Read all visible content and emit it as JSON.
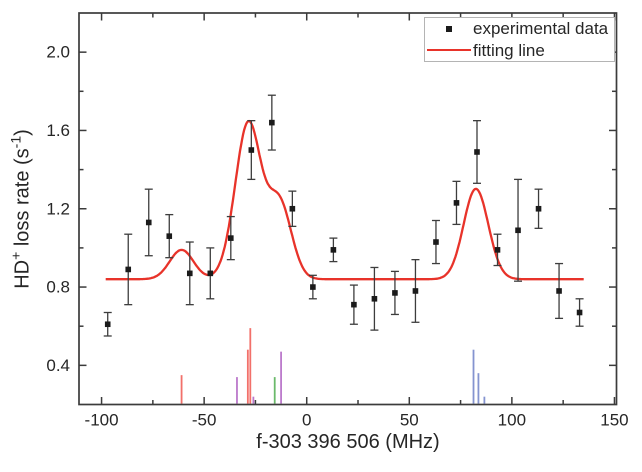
{
  "figure": {
    "legend": {
      "items": [
        {
          "label": "experimental data",
          "marker": "square",
          "color": "#1b1b1b"
        },
        {
          "label": "fitting line",
          "marker": "line",
          "color": "#e8332a"
        }
      ]
    }
  },
  "chart_data": {
    "type": "scatter",
    "title": "",
    "xlabel": "f-303 396 506 (MHz)",
    "ylabel": "HD+ loss rate (s-1)",
    "ylabel_parts": {
      "pre": "HD",
      "sup1": "+",
      "mid": " loss rate (s",
      "sup2": "-1",
      "post": ")"
    },
    "xlim": [
      -111,
      151
    ],
    "ylim": [
      0.2,
      2.2
    ],
    "grid": false,
    "legend_position": "top-right",
    "x_ticks": {
      "major": [
        -100,
        -50,
        0,
        50,
        100,
        150
      ],
      "labels": [
        "-100",
        "-50",
        "0",
        "50",
        "100",
        "150"
      ],
      "minor": [
        -75,
        -25,
        25,
        75,
        125
      ]
    },
    "y_ticks": {
      "major": [
        0.4,
        0.8,
        1.2,
        1.6,
        2.0
      ],
      "labels": [
        "0.4",
        "0.8",
        "1.2",
        "1.6",
        "2.0"
      ],
      "minor": [
        0.6,
        1.0,
        1.4,
        1.8
      ]
    },
    "colors": {
      "frame": "#3b3b3b",
      "text": "#262626",
      "marker": "#1b1b1b",
      "error_bar": "#3d3d3d",
      "fit": "#e8332a"
    },
    "experimental_points": [
      [
        -97,
        0.61,
        0.06
      ],
      [
        -87,
        0.89,
        0.18
      ],
      [
        -77,
        1.13,
        0.17
      ],
      [
        -67,
        1.06,
        0.11
      ],
      [
        -57,
        0.87,
        0.16
      ],
      [
        -47,
        0.87,
        0.13
      ],
      [
        -37,
        1.05,
        0.11
      ],
      [
        -27,
        1.5,
        0.15
      ],
      [
        -17,
        1.64,
        0.14
      ],
      [
        -7,
        1.2,
        0.09
      ],
      [
        3,
        0.8,
        0.06
      ],
      [
        13,
        0.99,
        0.06
      ],
      [
        23,
        0.71,
        0.1
      ],
      [
        33,
        0.74,
        0.16
      ],
      [
        43,
        0.77,
        0.11
      ],
      [
        53,
        0.78,
        0.16
      ],
      [
        63,
        1.03,
        0.11
      ],
      [
        73,
        1.23,
        0.11
      ],
      [
        83,
        1.49,
        0.16
      ],
      [
        93,
        0.99,
        0.08
      ],
      [
        103,
        1.09,
        0.26
      ],
      [
        113,
        1.2,
        0.1
      ],
      [
        123,
        0.78,
        0.14
      ],
      [
        133,
        0.67,
        0.07
      ]
    ],
    "fit": {
      "name": "fitting line",
      "model": "baseline plus gaussian components centered on sticks, amplitude = stick height",
      "baseline": 0.84,
      "sigma": 5.8,
      "domain": [
        -98,
        135
      ],
      "peak_maxima": [
        [
          -61,
          0.99
        ],
        [
          -27,
          1.69
        ],
        [
          84,
          1.3
        ]
      ]
    },
    "stick_colors": {
      "red": "#f2706a",
      "purple": "#bb79cb",
      "green": "#6aba6a",
      "blue": "#8594d0"
    },
    "sticks": [
      {
        "x": -61.0,
        "top": 0.35,
        "color": "red"
      },
      {
        "x": -34.0,
        "top": 0.34,
        "color": "purple"
      },
      {
        "x": -28.7,
        "top": 0.48,
        "color": "red"
      },
      {
        "x": -27.5,
        "top": 0.59,
        "color": "red"
      },
      {
        "x": -26.0,
        "top": 0.24,
        "color": "purple"
      },
      {
        "x": -15.6,
        "top": 0.34,
        "color": "green"
      },
      {
        "x": -12.5,
        "top": 0.47,
        "color": "purple"
      },
      {
        "x": 81.3,
        "top": 0.48,
        "color": "blue"
      },
      {
        "x": 83.7,
        "top": 0.36,
        "color": "blue"
      },
      {
        "x": 86.6,
        "top": 0.24,
        "color": "blue"
      }
    ]
  }
}
